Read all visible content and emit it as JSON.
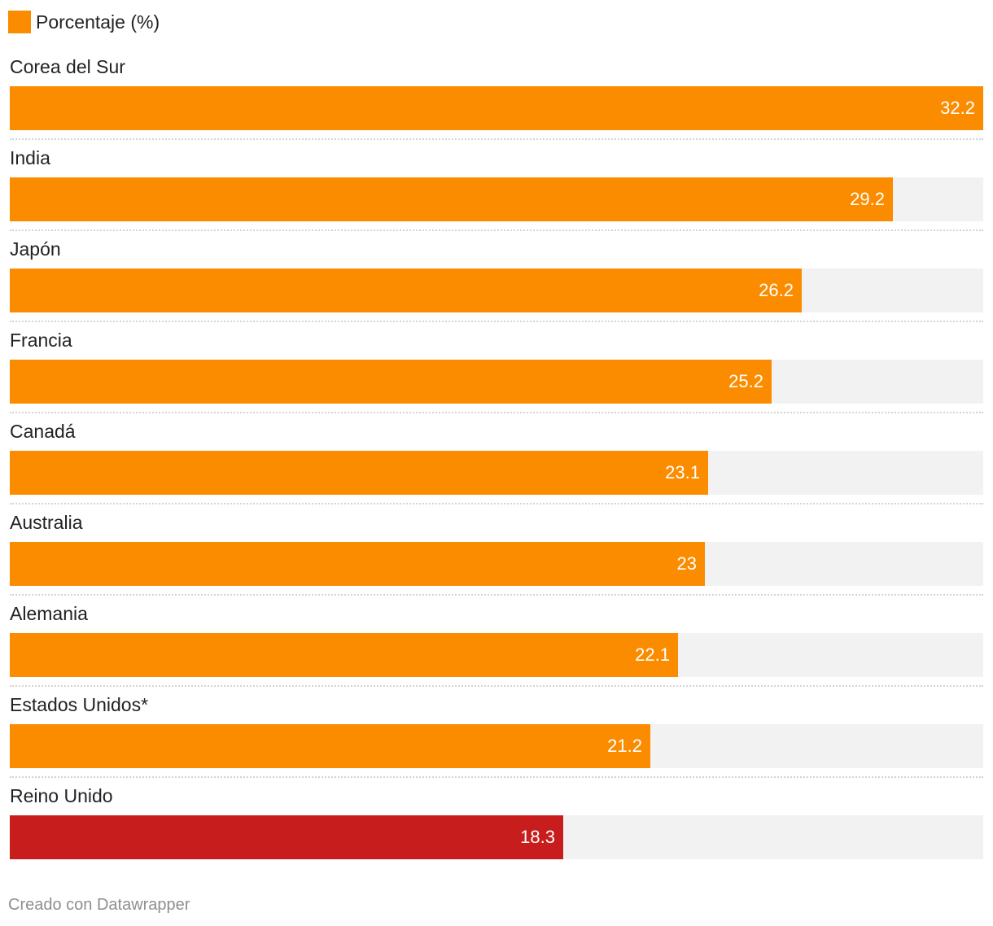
{
  "legend": {
    "label": "Porcentaje (%)",
    "color": "#fb8c00"
  },
  "chart_data": {
    "type": "bar",
    "orientation": "horizontal",
    "title": "",
    "categories": [
      "Corea del Sur",
      "India",
      "Japón",
      "Francia",
      "Canadá",
      "Australia",
      "Alemania",
      "Estados Unidos*",
      "Reino Unido"
    ],
    "values": [
      32.2,
      29.2,
      26.2,
      25.2,
      23.1,
      23,
      22.1,
      21.2,
      18.3
    ],
    "value_labels": [
      "32.2",
      "29.2",
      "26.2",
      "25.2",
      "23.1",
      "23",
      "22.1",
      "21.2",
      "18.3"
    ],
    "colors": [
      "#fb8c00",
      "#fb8c00",
      "#fb8c00",
      "#fb8c00",
      "#fb8c00",
      "#fb8c00",
      "#fb8c00",
      "#fb8c00",
      "#c71e1d"
    ],
    "series": [
      {
        "name": "Porcentaje (%)",
        "values": [
          32.2,
          29.2,
          26.2,
          25.2,
          23.1,
          23,
          22.1,
          21.2,
          18.3
        ]
      }
    ],
    "xlim": [
      0,
      32.2
    ],
    "grid": false,
    "legend_position": "top-left"
  },
  "colors": {
    "accent": "#fb8c00",
    "highlight": "#c71e1d",
    "track": "#f2f2f2"
  },
  "footer": {
    "credit": "Creado con Datawrapper"
  }
}
